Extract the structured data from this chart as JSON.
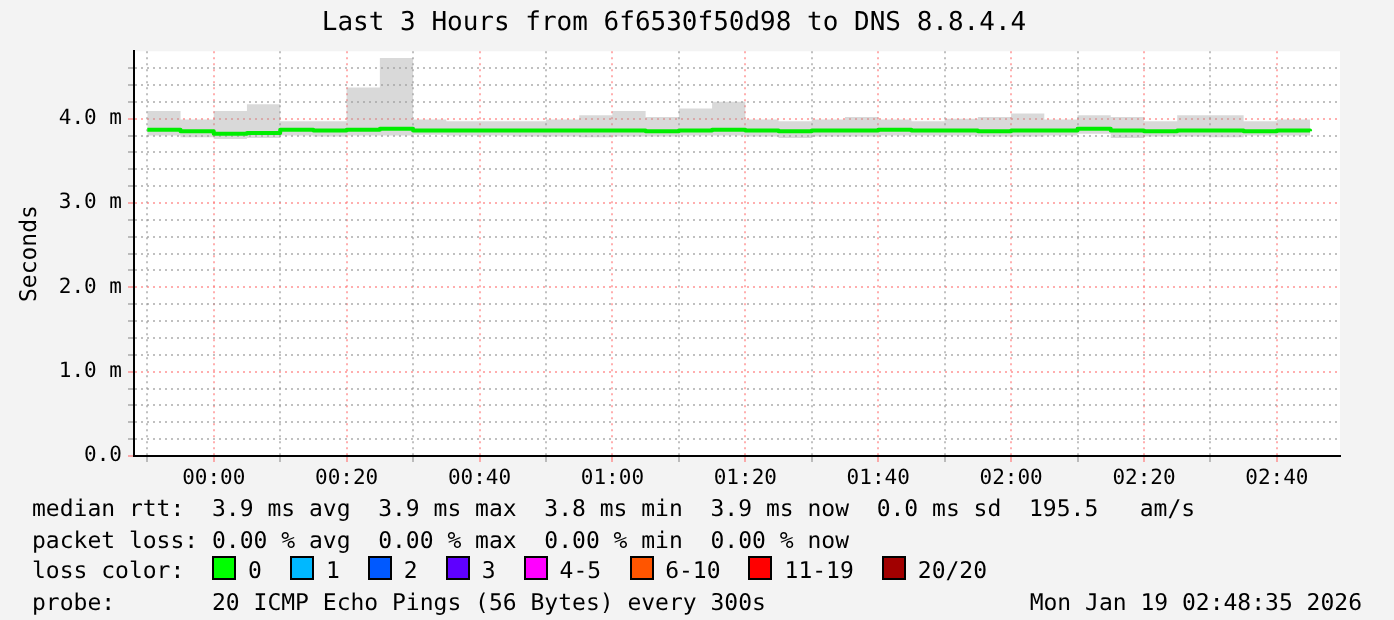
{
  "chart_data": {
    "type": "step",
    "title": "Last 3 Hours from 6f6530f50d98 to DNS 8.8.4.4",
    "ylabel": "Seconds",
    "x": [
      -0.1667,
      -0.0833,
      0,
      0.0833,
      0.1667,
      0.25,
      0.3333,
      0.4167,
      0.5,
      0.5833,
      0.6667,
      0.75,
      0.8333,
      0.9167,
      1,
      1.0833,
      1.1667,
      1.25,
      1.3333,
      1.4167,
      1.5,
      1.5833,
      1.6667,
      1.75,
      1.8333,
      1.9167,
      2,
      2.0833,
      2.1667,
      2.25,
      2.3333,
      2.4167,
      2.5,
      2.5833,
      2.6667,
      2.75
    ],
    "series": [
      {
        "color": "#00ee00",
        "values": [
          3.87,
          3.85,
          3.82,
          3.83,
          3.87,
          3.86,
          3.87,
          3.88,
          3.86,
          3.86,
          3.86,
          3.86,
          3.86,
          3.86,
          3.86,
          3.85,
          3.86,
          3.87,
          3.86,
          3.85,
          3.86,
          3.86,
          3.87,
          3.86,
          3.86,
          3.85,
          3.86,
          3.86,
          3.88,
          3.86,
          3.85,
          3.86,
          3.86,
          3.85,
          3.86,
          3.85
        ],
        "lower": [
          3.8,
          3.78,
          3.76,
          3.77,
          3.8,
          3.79,
          3.8,
          3.8,
          3.81,
          3.8,
          3.8,
          3.79,
          3.79,
          3.78,
          3.79,
          3.79,
          3.8,
          3.8,
          3.79,
          3.77,
          3.79,
          3.79,
          3.8,
          3.8,
          3.8,
          3.79,
          3.79,
          3.8,
          3.82,
          3.77,
          3.79,
          3.79,
          3.78,
          3.8,
          3.8,
          3.78
        ],
        "upper": [
          4.09,
          3.99,
          4.09,
          4.17,
          3.97,
          3.97,
          4.37,
          4.72,
          3.99,
          3.97,
          3.97,
          3.97,
          3.99,
          4.04,
          4.09,
          4.02,
          4.12,
          4.2,
          3.99,
          3.97,
          3.99,
          4.02,
          3.99,
          3.97,
          4.0,
          4.02,
          4.06,
          3.99,
          4.04,
          4.02,
          3.97,
          4.04,
          4.04,
          3.97,
          3.99,
          4.37
        ]
      }
    ],
    "xlim": [
      -0.2,
      2.825
    ],
    "xticks": [
      {
        "value": -0.1667,
        "label": null
      },
      {
        "value": 0,
        "label": "00:00"
      },
      {
        "value": 0.1667,
        "label": null
      },
      {
        "value": 0.3333,
        "label": "00:20"
      },
      {
        "value": 0.5,
        "label": null
      },
      {
        "value": 0.6667,
        "label": "00:40"
      },
      {
        "value": 0.8333,
        "label": null
      },
      {
        "value": 1,
        "label": "01:00"
      },
      {
        "value": 1.1667,
        "label": null
      },
      {
        "value": 1.3333,
        "label": "01:20"
      },
      {
        "value": 1.5,
        "label": null
      },
      {
        "value": 1.6667,
        "label": "01:40"
      },
      {
        "value": 1.8333,
        "label": null
      },
      {
        "value": 2,
        "label": "02:00"
      },
      {
        "value": 2.1667,
        "label": null
      },
      {
        "value": 2.3333,
        "label": "02:20"
      },
      {
        "value": 2.5,
        "label": null
      },
      {
        "value": 2.6667,
        "label": "02:40"
      }
    ],
    "ylim": [
      0,
      4.8
    ],
    "yticks": [
      {
        "value": 0,
        "label": "0.0"
      },
      {
        "value": 0.2,
        "label": null
      },
      {
        "value": 0.4,
        "label": null
      },
      {
        "value": 0.6,
        "label": null
      },
      {
        "value": 0.8,
        "label": null
      },
      {
        "value": 1,
        "label": "1.0 m"
      },
      {
        "value": 1.2,
        "label": null
      },
      {
        "value": 1.4,
        "label": null
      },
      {
        "value": 1.6,
        "label": null
      },
      {
        "value": 1.8,
        "label": null
      },
      {
        "value": 2,
        "label": "2.0 m"
      },
      {
        "value": 2.2,
        "label": null
      },
      {
        "value": 2.4,
        "label": null
      },
      {
        "value": 2.6,
        "label": null
      },
      {
        "value": 2.8,
        "label": null
      },
      {
        "value": 3,
        "label": "3.0 m"
      },
      {
        "value": 3.2,
        "label": null
      },
      {
        "value": 3.4,
        "label": null
      },
      {
        "value": 3.6,
        "label": null
      },
      {
        "value": 3.8,
        "label": null
      },
      {
        "value": 4,
        "label": "4.0 m"
      },
      {
        "value": 4.2,
        "label": null
      },
      {
        "value": 4.4,
        "label": null
      },
      {
        "value": 4.6,
        "label": null
      }
    ],
    "grid": true,
    "annotations": [
      "median rtt:  3.9 ms avg  3.9 ms max  3.8 ms min  3.9 ms now  0.0 ms sd  195.5   am/s",
      "packet loss: 0.00 % avg  0.00 % max  0.00 % min  0.00 % now",
      "loss color:",
      "0",
      "1",
      "2",
      "3",
      "4-5",
      "6-10",
      "11-19",
      "20/20",
      "probe:       20 ICMP Echo Pings (56 Bytes) every 300s",
      "Mon Jan 19 02:48:35 2026"
    ]
  }
}
